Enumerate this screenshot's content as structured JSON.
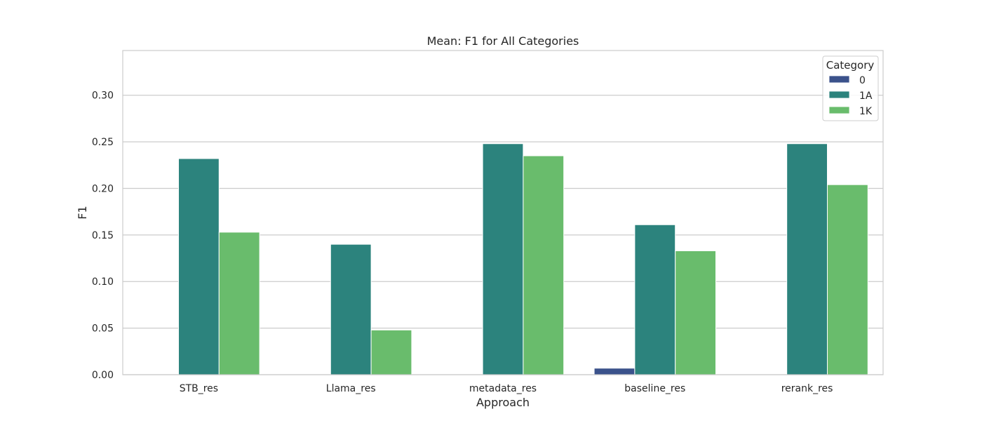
{
  "chart_data": {
    "type": "bar",
    "title": "Mean: F1 for All Categories",
    "xlabel": "Approach",
    "ylabel": "F1",
    "categories": [
      "STB_res",
      "Llama_res",
      "metadata_res",
      "baseline_res",
      "rerank_res"
    ],
    "series": [
      {
        "name": "0",
        "color": "#3b528b",
        "values": [
          0,
          0,
          0,
          0.007,
          0
        ]
      },
      {
        "name": "1A",
        "color": "#2c837d",
        "values": [
          0.232,
          0.14,
          0.248,
          0.161,
          0.248
        ]
      },
      {
        "name": "1K",
        "color": "#69bc6c",
        "values": [
          0.153,
          0.048,
          0.235,
          0.133,
          0.204
        ]
      }
    ],
    "ylim": [
      0,
      0.348
    ],
    "yticks": [
      0.0,
      0.05,
      0.1,
      0.15,
      0.2,
      0.25,
      0.3
    ],
    "ytick_labels": [
      "0.00",
      "0.05",
      "0.10",
      "0.15",
      "0.20",
      "0.25",
      "0.30"
    ],
    "grid": "y",
    "legend": {
      "title": "Category",
      "position": "top-right"
    },
    "colors": {
      "grid": "#cccccc",
      "frame": "#cccccc",
      "text": "#262626",
      "background": "#ffffff"
    }
  }
}
